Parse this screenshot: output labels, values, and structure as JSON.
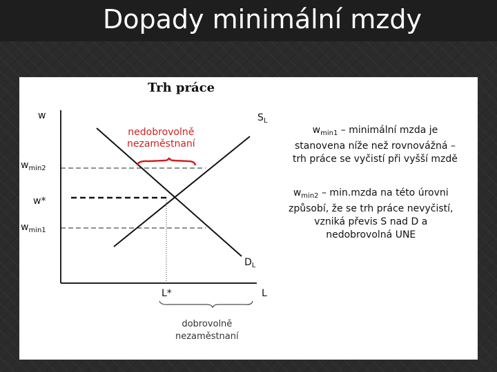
{
  "slide": {
    "title": "Dopady minimální mzdy",
    "subtitle": "Trh práce"
  },
  "graph": {
    "y_axis_label": "w",
    "x_axis_label": "L",
    "supply_label": "S",
    "supply_sub": "L",
    "demand_label": "D",
    "demand_sub": "L",
    "w_min2_label": "w",
    "w_min2_sub": "min2",
    "w_star_label": "w*",
    "w_min1_label": "w",
    "w_min1_sub": "min1",
    "l_star_label": "L*",
    "involuntary_line1": "nedobrovolně",
    "involuntary_line2": "nezaměstnaní",
    "voluntary_line1": "dobrovolně",
    "voluntary_line2": "nezaměstnaní"
  },
  "notes": {
    "note1_var": "w",
    "note1_sub": "min1",
    "note1_line1": " – minimální mzda je",
    "note1_line2": "stanovena níže než rovnovážná –",
    "note1_line3": "trh práce se vyčistí při vyšší mzdě",
    "note2_var": "w",
    "note2_sub": "min2",
    "note2_line1": " – min.mzda na této úrovni",
    "note2_line2": "způsobí, že se trh práce nevyčistí,",
    "note2_line3": "vzniká převis S nad D a",
    "note2_line4": "nedobrovolná UNE"
  },
  "colors": {
    "background": "#2b2b2b",
    "panel": "#ffffff",
    "emphasis": "#d02020"
  }
}
